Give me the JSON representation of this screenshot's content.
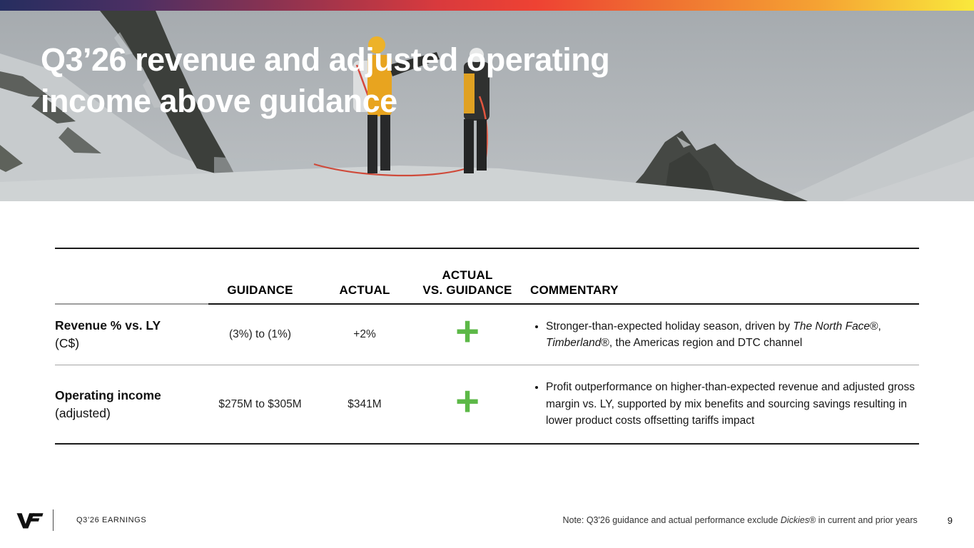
{
  "colors": {
    "accent_green": "#5CB847",
    "gradient_bar": [
      "#262e60",
      "#4c2f63",
      "#93334f",
      "#d93a3d",
      "#ee4233",
      "#ef7031",
      "#f5a233",
      "#f9e93c"
    ]
  },
  "hero": {
    "title_lines": [
      "Q3’26 revenue and adjusted operating",
      "income above guidance"
    ]
  },
  "table": {
    "headers": {
      "guidance": "GUIDANCE",
      "actual": "ACTUAL",
      "vs_guidance_line1": "ACTUAL",
      "vs_guidance_line2": "VS. GUIDANCE",
      "commentary": "COMMENTARY"
    },
    "rows": [
      {
        "label_bold": "Revenue % vs. LY",
        "label_normal": "(C$)",
        "guidance": "(3%) to (1%)",
        "actual": "+2%",
        "vs_guidance": "+",
        "commentary": [
          {
            "text": "Stronger-than-expected holiday season, driven by ",
            "italic": false
          },
          {
            "text": "The North Face",
            "italic": true
          },
          {
            "text": "®, ",
            "italic": false
          },
          {
            "text": "Timberland",
            "italic": true
          },
          {
            "text": "®, the Americas region and DTC channel",
            "italic": false
          }
        ]
      },
      {
        "label_bold": "Operating income",
        "label_normal": "(adjusted)",
        "guidance": "$275M to $305M",
        "actual": "$341M",
        "vs_guidance": "+",
        "commentary": [
          {
            "text": "Profit outperformance on higher-than-expected revenue and adjusted gross margin vs. LY, supported by mix benefits and sourcing savings resulting in lower product costs offsetting tariffs impact",
            "italic": false
          }
        ]
      }
    ]
  },
  "footer": {
    "deck_label": "Q3’26 EARNINGS",
    "note": [
      {
        "text": "Note: Q3'26 guidance and actual performance exclude ",
        "italic": false
      },
      {
        "text": "Dickies",
        "italic": true
      },
      {
        "text": "® in current and prior years",
        "italic": false
      }
    ],
    "page_number": "9"
  }
}
